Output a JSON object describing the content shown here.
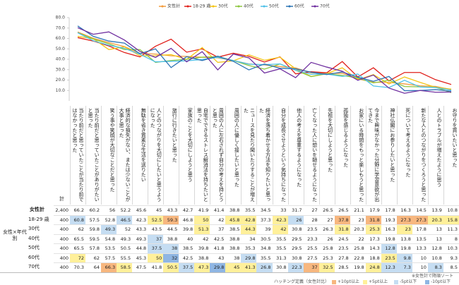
{
  "chart_data": {
    "type": "line",
    "categories": [
      "当たり前だと思っていたことが当たり前ではなかったと思った",
      "当たり前だと思っていたことがありがたいと思った",
      "笑う事や笑顔が大切なことだと思った",
      "経済的な損失がない、または少ないことが大事と思った",
      "無駄を省き質素な生活を送りたい",
      "人とのつながりを大切にしたいと思うようになった",
      "旅行に行きたいと思った",
      "家族のことを大切にしようと思う",
      "自宅でできるストレス解消法を持ちたいと思った",
      "周囲の人に左右されず自分の考えを持とうと思った",
      "周囲の人に優しく接したいと思った",
      "ニュースを見たり聞いたりすることが増えた",
      "経済を落ち着かせる方法を知りたいと思った",
      "自分を成長させようという気持ちになった",
      "他人の考えを尊重するようになった",
      "亡くなった人に想いを馳せるようになった",
      "先祖を大切にしようと思った",
      "孤独を感じるようになった",
      "お家にいる時間をもっと楽しもうと思った",
      "今まで興味がなかった分野に学習意欲が出てきた",
      "神社仏閣にお参りしたいと思った",
      "死について考えるようになった",
      "新たな人とのつながりをつくろうと思った",
      "人とのトラブルが増えたように思う",
      "お守りを買いたいと思った"
    ],
    "series": [
      {
        "name": "女性計",
        "color": "#f39c3c",
        "values": [
          66.2,
          60.2,
          56.0,
          52.2,
          45.6,
          45.0,
          43.3,
          42.7,
          41.9,
          41.4,
          38.8,
          35.5,
          34.5,
          33.0,
          31.7,
          27.0,
          26.5,
          26.5,
          21.1,
          17.9,
          17.8,
          16.3,
          14.5,
          13.9,
          10.8
        ]
      },
      {
        "name": "18-29 歳",
        "color": "#e0201b",
        "values": [
          60.8,
          57.5,
          52.8,
          46.5,
          42.3,
          52.5,
          59.3,
          46.8,
          50.0,
          42.0,
          45.8,
          42.8,
          37.3,
          42.3,
          26.0,
          28.0,
          27.0,
          37.8,
          23.0,
          31.8,
          19.3,
          27.3,
          27.3,
          20.3,
          15.8
        ]
      },
      {
        "name": "30代",
        "color": "#f5c518",
        "values": [
          62.0,
          59.8,
          49.3,
          52.0,
          43.3,
          43.5,
          44.5,
          39.8,
          51.3,
          37.0,
          38.5,
          44.3,
          39.0,
          42.0,
          30.8,
          23.5,
          26.3,
          31.8,
          20.3,
          25.3,
          16.3,
          23.0,
          17.8,
          13.0,
          11.3
        ]
      },
      {
        "name": "40代",
        "color": "#8dc63f",
        "values": [
          65.5,
          59.5,
          54.8,
          49.3,
          49.3,
          37.0,
          38.8,
          40.0,
          42.0,
          42.5,
          38.8,
          34.0,
          30.5,
          35.5,
          29.5,
          23.3,
          26.0,
          24.5,
          22.0,
          17.3,
          19.8,
          13.8,
          13.5,
          13.0,
          8.0
        ]
      },
      {
        "name": "50代",
        "color": "#4fc1e9",
        "values": [
          65.5,
          57.8,
          53.5,
          50.5,
          44.8,
          37.5,
          38.0,
          38.5,
          39.8,
          41.8,
          38.8,
          35.3,
          34.8,
          35.5,
          29.5,
          25.5,
          25.8,
          23.5,
          25.8,
          14.3,
          12.8,
          19.8,
          13.3,
          12.8,
          10.3
        ]
      },
      {
        "name": "60代",
        "color": "#2e75b6",
        "values": [
          72.0,
          62.0,
          57.5,
          55.5,
          45.3,
          50.0,
          32.0,
          42.5,
          38.8,
          43.0,
          38.0,
          29.8,
          35.5,
          31.3,
          30.8,
          27.5,
          25.3,
          27.8,
          22.8,
          18.8,
          23.5,
          9.8,
          10.0,
          10.8,
          9.3
        ]
      },
      {
        "name": "70代",
        "color": "#7030a0",
        "values": [
          70.3,
          64.0,
          66.3,
          58.5,
          47.5,
          41.8,
          50.5,
          37.5,
          47.3,
          29.8,
          45.0,
          41.3,
          26.8,
          30.8,
          22.3,
          37.0,
          32.5,
          28.5,
          19.8,
          24.8,
          12.3,
          7.3,
          10.0,
          8.3,
          8.5
        ]
      }
    ],
    "ylim": [
      0,
      80
    ],
    "yticks": [
      {
        "value": 10,
        "label": "10.0"
      },
      {
        "value": 20,
        "label": "20.0"
      },
      {
        "value": 30,
        "label": "30.0"
      },
      {
        "value": 40,
        "label": "40.0"
      },
      {
        "value": 50,
        "label": "50.0"
      },
      {
        "value": 60,
        "label": "60.0"
      },
      {
        "value": 70,
        "label": "70.0"
      },
      {
        "value": 80,
        "label": "80.0"
      }
    ],
    "legend": "top"
  },
  "table": {
    "n_header": "計",
    "n": [
      "2,400",
      "400",
      "400",
      "400",
      "400",
      "400",
      "400"
    ],
    "group_label": "女性×年代別",
    "note": "※女性計で降順ソート",
    "hatching": {
      "title": "ハッチング定義（女性計比）",
      "items": [
        {
          "label": "+10pt以上",
          "color": "#f7b77f"
        },
        {
          "label": "+5pt以上",
          "color": "#fff09a"
        },
        {
          "label": "-5pt以下",
          "color": "#c5ddf2"
        },
        {
          "label": "-10pt以下",
          "color": "#8fb6e3"
        }
      ]
    }
  }
}
